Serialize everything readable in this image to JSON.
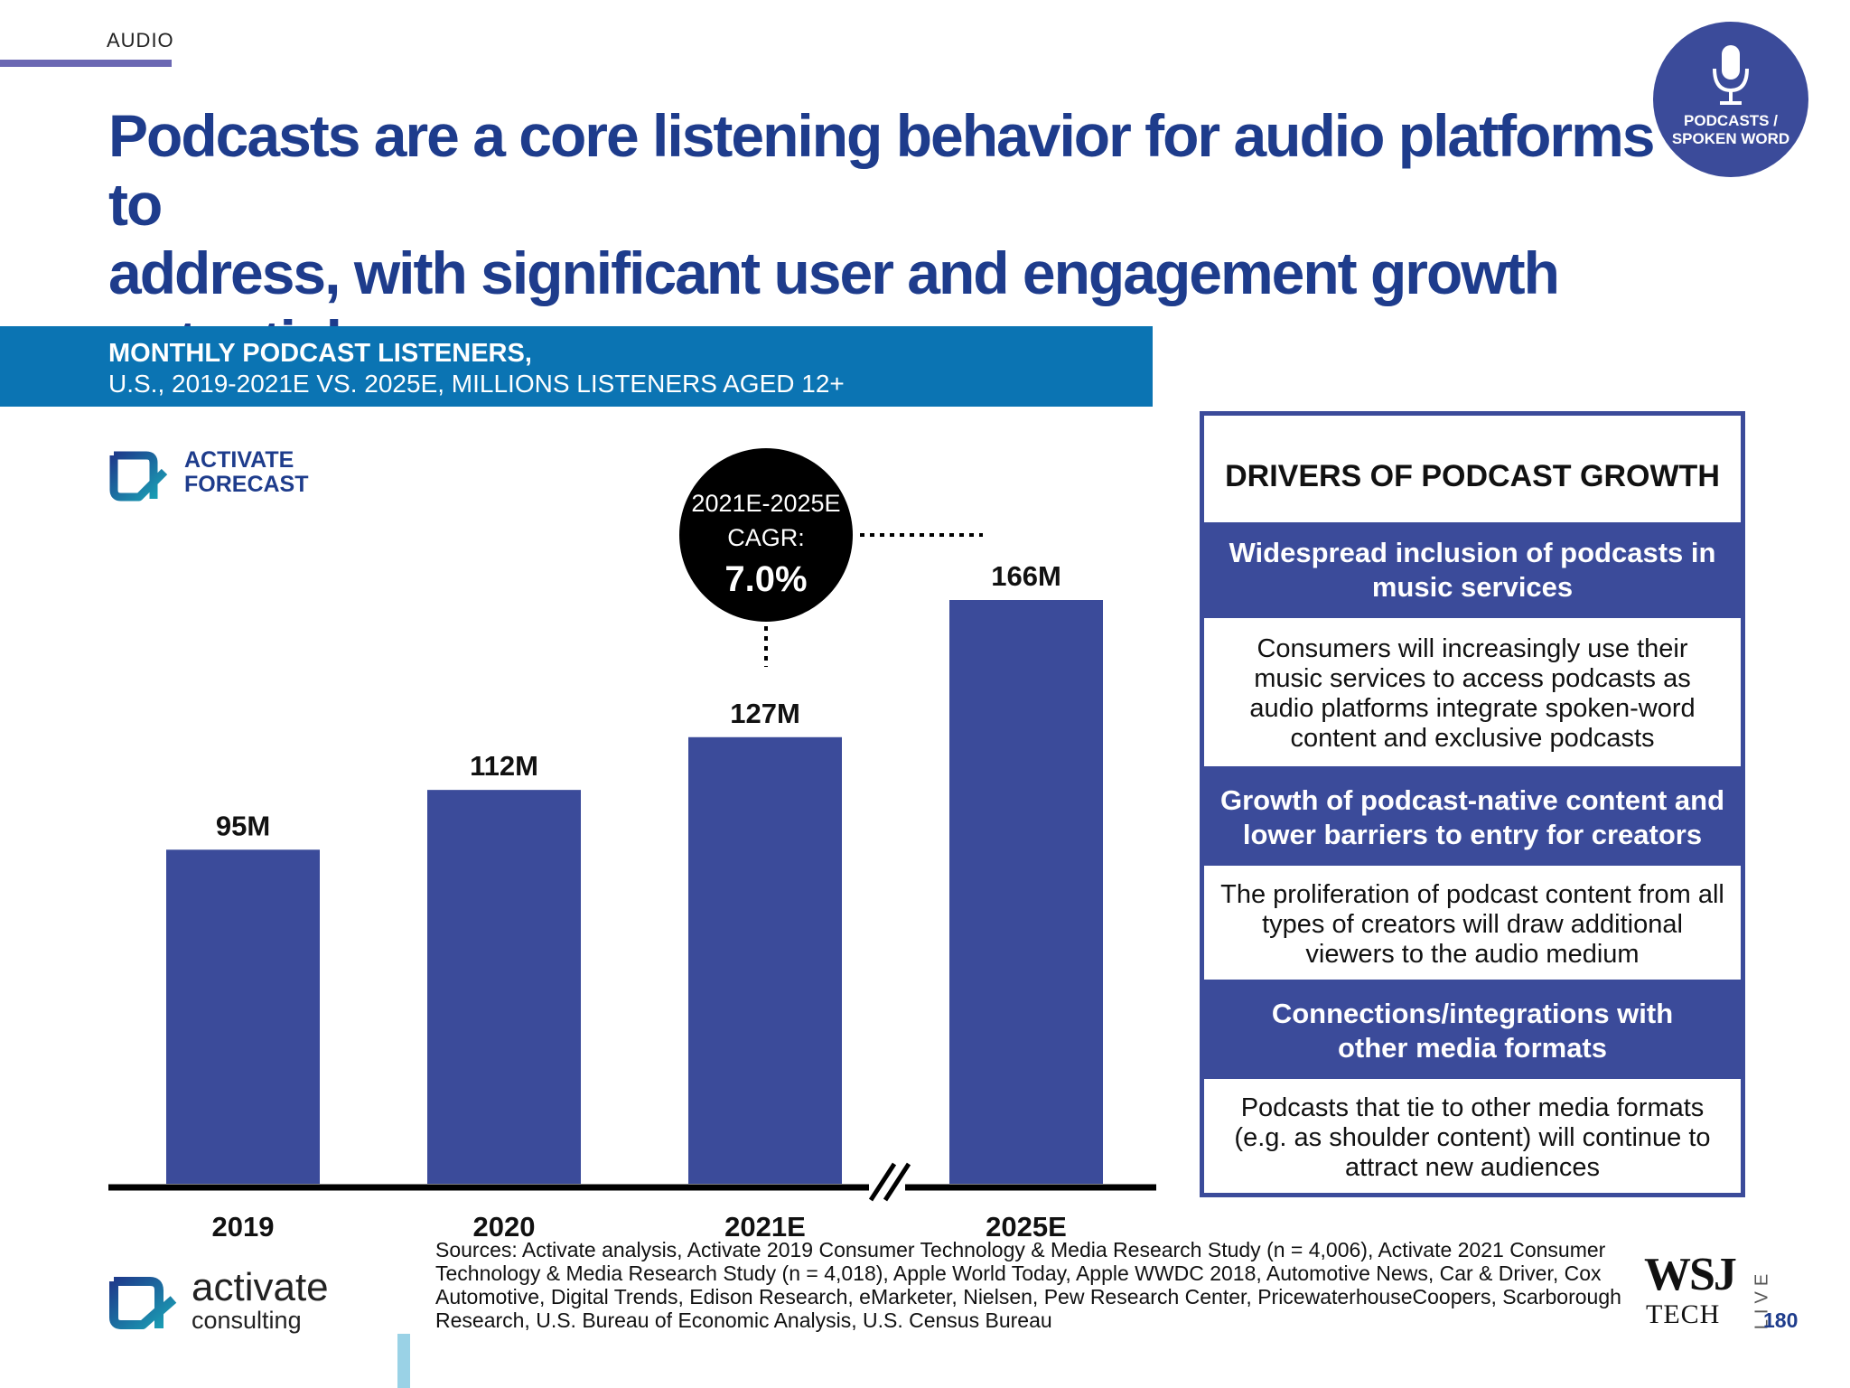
{
  "section": "AUDIO",
  "headline": {
    "line1": "Podcasts are a core listening behavior for audio platforms to",
    "line2": "address, with significant user and engagement growth potential"
  },
  "badge": {
    "line1": "PODCASTS /",
    "line2": "SPOKEN WORD",
    "icon": "microphone-icon"
  },
  "chart_header": {
    "title": "MONTHLY PODCAST LISTENERS,",
    "subtitle": "U.S., 2019-2021E VS. 2025E, MILLIONS LISTENERS AGED 12+"
  },
  "forecast_logo": {
    "line1": "ACTIVATE",
    "line2": "FORECAST"
  },
  "cagr": {
    "line1": "2021E-2025E",
    "line2": "CAGR:",
    "value": "7.0%"
  },
  "chart_data": {
    "type": "bar",
    "title": "MONTHLY PODCAST LISTENERS, U.S., 2019-2021E VS. 2025E, MILLIONS LISTENERS AGED 12+",
    "categories": [
      "2019",
      "2020",
      "2021E",
      "2025E"
    ],
    "values": [
      95,
      112,
      127,
      166
    ],
    "data_labels": [
      "95M",
      "112M",
      "127M",
      "166M"
    ],
    "unit": "M",
    "ylim": [
      0,
      180
    ],
    "axis_break_between": [
      "2021E",
      "2025E"
    ],
    "grid": false,
    "bar_color": "#3b4b9a"
  },
  "drivers": {
    "title": "DRIVERS OF PODCAST GROWTH",
    "items": [
      {
        "heading": "Widespread inclusion of podcasts in music services",
        "body": "Consumers will increasingly use their music services to access podcasts as audio platforms integrate spoken-word content and exclusive podcasts"
      },
      {
        "heading": "Growth of podcast-native content and lower barriers to entry for creators",
        "body": "The proliferation of podcast content from all types of creators will draw additional viewers to the audio medium"
      },
      {
        "heading": "Connections/integrations with other media formats",
        "body": "Podcasts that tie to other media formats (e.g. as shoulder content) will continue to attract new audiences"
      }
    ]
  },
  "footer": {
    "logo_line1": "activate",
    "logo_line2": "consulting",
    "sources": "Sources: Activate analysis, Activate 2019 Consumer Technology & Media Research Study (n = 4,006), Activate 2021 Consumer Technology & Media Research Study (n = 4,018), Apple World Today, Apple WWDC 2018, Automotive News, Car & Driver, Cox Automotive, Digital Trends, Edison Research, eMarketer, Nielsen, Pew Research Center, PricewaterhouseCoopers, Scarborough Research, U.S. Bureau of Economic Analysis, U.S. Census Bureau",
    "wsj_line1": "WSJ",
    "wsj_line2": "TECH",
    "wsj_live": "LIVE",
    "page_number": "180"
  },
  "colors": {
    "navy": "#1e3c8c",
    "bar": "#3b4b9a",
    "header_blue": "#0b74b3",
    "teal": "#1a9bb5"
  }
}
